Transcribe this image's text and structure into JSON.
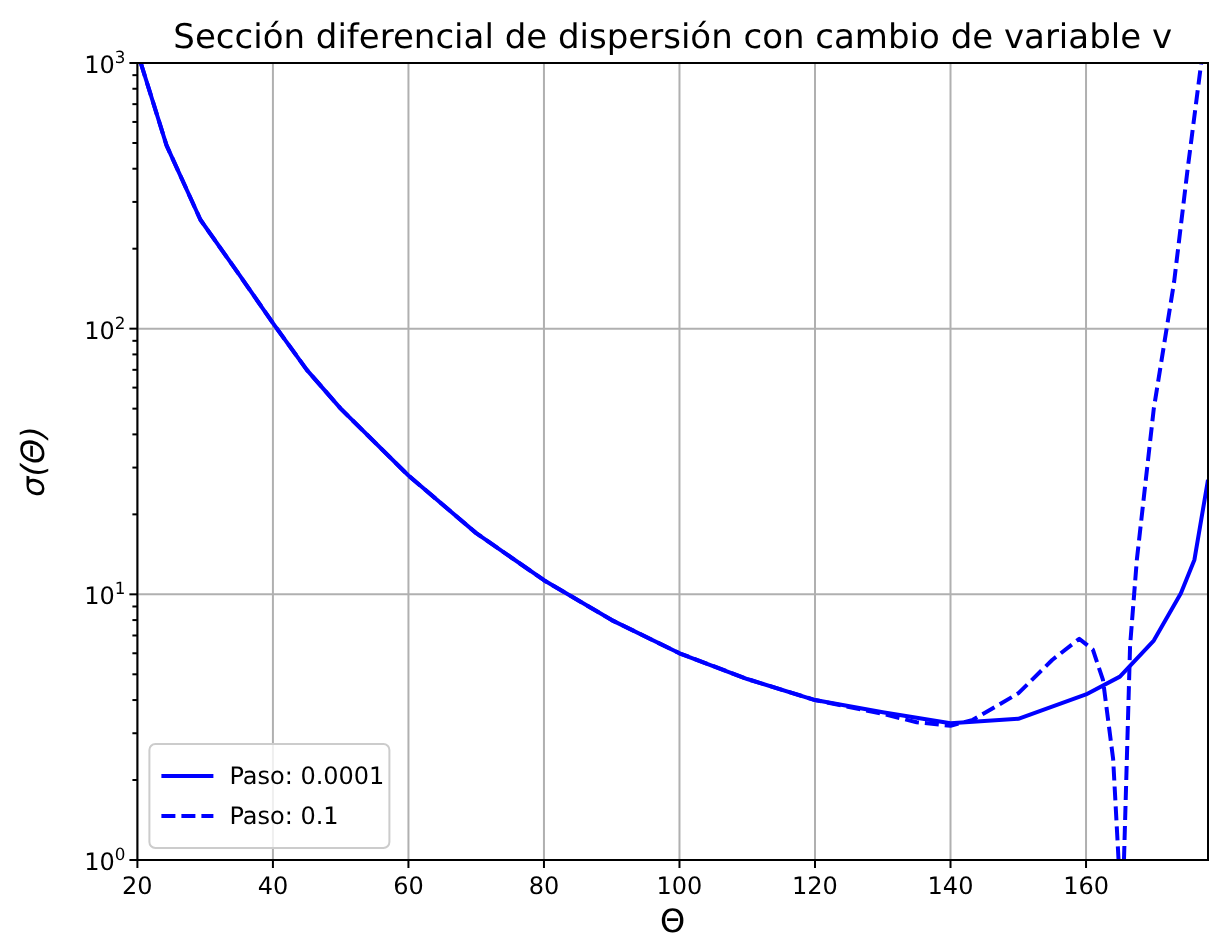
{
  "chart_data": {
    "type": "line",
    "title": "Sección diferencial de dispersión con cambio de variable v",
    "xlabel": "Θ",
    "ylabel": "σ(Θ)",
    "log": "y",
    "grid": true,
    "legend": "bottom left",
    "xlim": [
      20,
      178
    ],
    "ylim": [
      1,
      1000
    ],
    "xticks": [
      20,
      40,
      60,
      80,
      100,
      120,
      140,
      160
    ],
    "yticks": [
      {
        "value": 1,
        "label": "10$^{0}$"
      },
      {
        "value": 2,
        "label": null
      },
      {
        "value": 3,
        "label": null
      },
      {
        "value": 4,
        "label": null
      },
      {
        "value": 5,
        "label": null
      },
      {
        "value": 6,
        "label": null
      },
      {
        "value": 7,
        "label": null
      },
      {
        "value": 8,
        "label": null
      },
      {
        "value": 9,
        "label": null
      },
      {
        "value": 10,
        "label": "10$^{1}$"
      },
      {
        "value": 20,
        "label": null
      },
      {
        "value": 30,
        "label": null
      },
      {
        "value": 40,
        "label": null
      },
      {
        "value": 50,
        "label": null
      },
      {
        "value": 60,
        "label": null
      },
      {
        "value": 70,
        "label": null
      },
      {
        "value": 80,
        "label": null
      },
      {
        "value": 90,
        "label": null
      },
      {
        "value": 100,
        "label": "10$^{2}$"
      },
      {
        "value": 200,
        "label": null
      },
      {
        "value": 300,
        "label": null
      },
      {
        "value": 400,
        "label": null
      },
      {
        "value": 500,
        "label": null
      },
      {
        "value": 600,
        "label": null
      },
      {
        "value": 700,
        "label": null
      },
      {
        "value": 800,
        "label": null
      },
      {
        "value": 900,
        "label": null
      },
      {
        "value": 1000,
        "label": "10$^{3}$"
      }
    ],
    "series": [
      {
        "name": "Paso: 0.0001",
        "color": "#0000ff",
        "line_style": "solid",
        "x": [
          20.5,
          24.3,
          29.3,
          35,
          40,
          45,
          50,
          60,
          70,
          80,
          90,
          100,
          110,
          120,
          130,
          140,
          150,
          160,
          165,
          170,
          174,
          176,
          178
        ],
        "values": [
          1000,
          490,
          257,
          160,
          105,
          70,
          50,
          28,
          17,
          11.3,
          8,
          6,
          4.8,
          4,
          3.6,
          3.27,
          3.4,
          4.2,
          4.9,
          6.7,
          10.1,
          13.5,
          27
        ]
      },
      {
        "name": "Paso: 0.1",
        "color": "#0000ff",
        "line_style": "dashed",
        "x": [
          20.5,
          24.3,
          29.3,
          35,
          40,
          45,
          50,
          60,
          70,
          80,
          90,
          100,
          110,
          120,
          130,
          135,
          140,
          143.3,
          150,
          155,
          159,
          161,
          162.5,
          164,
          164.8,
          165.2,
          165.6,
          166.5,
          167.5,
          170,
          173,
          175,
          177
        ],
        "values": [
          1000,
          490,
          257,
          160,
          105,
          70,
          50,
          28,
          17,
          11.3,
          8,
          6,
          4.8,
          4,
          3.55,
          3.3,
          3.2,
          3.37,
          4.24,
          5.66,
          6.8,
          6.2,
          4.76,
          2.4,
          1,
          null,
          1,
          6.4,
          13.5,
          50,
          150,
          400,
          1000
        ]
      }
    ]
  }
}
